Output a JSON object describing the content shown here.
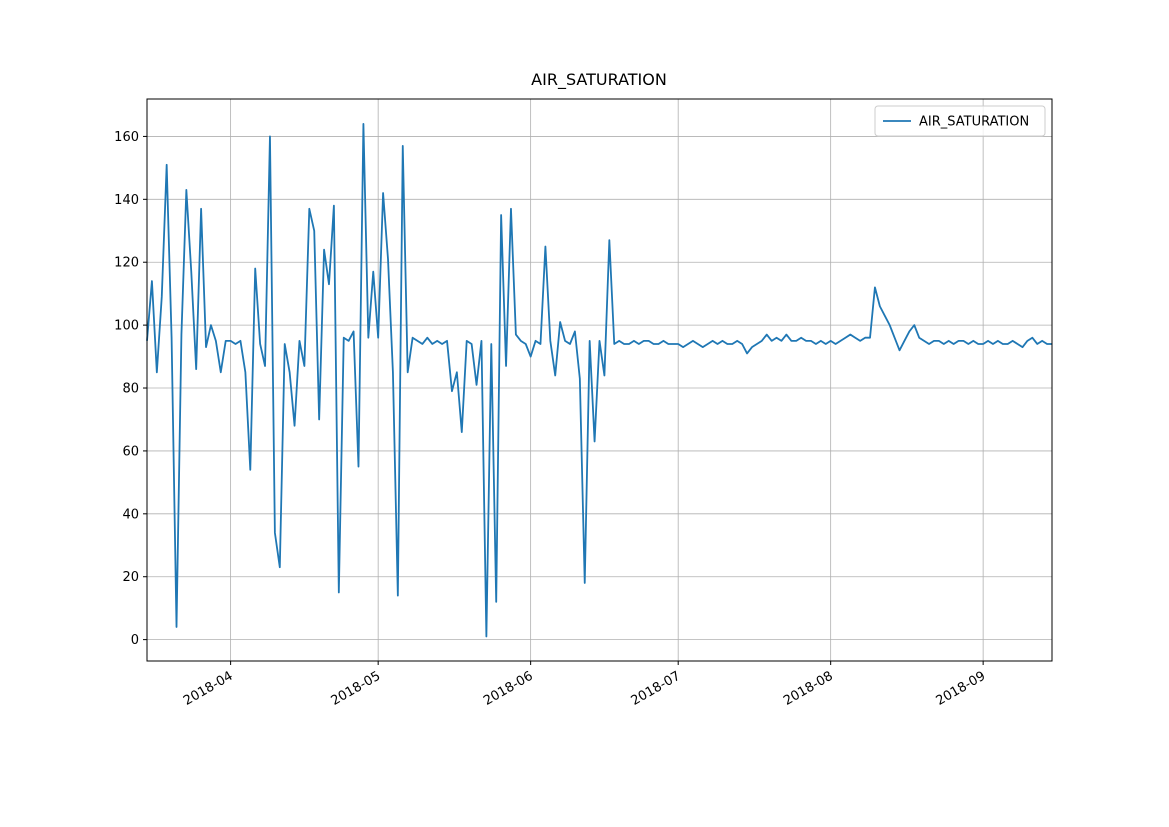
{
  "chart_data": {
    "type": "line",
    "title": "AIR_SATURATION",
    "x": [
      "2018-03-15",
      "2018-03-16",
      "2018-03-17",
      "2018-03-18",
      "2018-03-19",
      "2018-03-20",
      "2018-03-21",
      "2018-03-22",
      "2018-03-23",
      "2018-03-24",
      "2018-03-25",
      "2018-03-26",
      "2018-03-27",
      "2018-03-28",
      "2018-03-29",
      "2018-03-30",
      "2018-03-31",
      "2018-04-01",
      "2018-04-02",
      "2018-04-03",
      "2018-04-04",
      "2018-04-05",
      "2018-04-06",
      "2018-04-07",
      "2018-04-08",
      "2018-04-09",
      "2018-04-10",
      "2018-04-11",
      "2018-04-12",
      "2018-04-13",
      "2018-04-14",
      "2018-04-15",
      "2018-04-16",
      "2018-04-17",
      "2018-04-18",
      "2018-04-19",
      "2018-04-20",
      "2018-04-21",
      "2018-04-22",
      "2018-04-23",
      "2018-04-24",
      "2018-04-25",
      "2018-04-26",
      "2018-04-27",
      "2018-04-28",
      "2018-04-29",
      "2018-04-30",
      "2018-05-01",
      "2018-05-02",
      "2018-05-03",
      "2018-05-04",
      "2018-05-05",
      "2018-05-06",
      "2018-05-07",
      "2018-05-08",
      "2018-05-09",
      "2018-05-10",
      "2018-05-11",
      "2018-05-12",
      "2018-05-13",
      "2018-05-14",
      "2018-05-15",
      "2018-05-16",
      "2018-05-17",
      "2018-05-18",
      "2018-05-19",
      "2018-05-20",
      "2018-05-21",
      "2018-05-22",
      "2018-05-23",
      "2018-05-24",
      "2018-05-25",
      "2018-05-26",
      "2018-05-27",
      "2018-05-28",
      "2018-05-29",
      "2018-05-30",
      "2018-05-31",
      "2018-06-01",
      "2018-06-02",
      "2018-06-03",
      "2018-06-04",
      "2018-06-05",
      "2018-06-06",
      "2018-06-07",
      "2018-06-08",
      "2018-06-09",
      "2018-06-10",
      "2018-06-11",
      "2018-06-12",
      "2018-06-13",
      "2018-06-14",
      "2018-06-15",
      "2018-06-16",
      "2018-06-17",
      "2018-06-18",
      "2018-06-19",
      "2018-06-20",
      "2018-06-21",
      "2018-06-22",
      "2018-06-23",
      "2018-06-24",
      "2018-06-25",
      "2018-06-26",
      "2018-06-27",
      "2018-06-28",
      "2018-06-29",
      "2018-06-30",
      "2018-07-01",
      "2018-07-02",
      "2018-07-03",
      "2018-07-04",
      "2018-07-05",
      "2018-07-06",
      "2018-07-07",
      "2018-07-08",
      "2018-07-09",
      "2018-07-10",
      "2018-07-11",
      "2018-07-12",
      "2018-07-13",
      "2018-07-14",
      "2018-07-15",
      "2018-07-16",
      "2018-07-17",
      "2018-07-18",
      "2018-07-19",
      "2018-07-20",
      "2018-07-21",
      "2018-07-22",
      "2018-07-23",
      "2018-07-24",
      "2018-07-25",
      "2018-07-26",
      "2018-07-27",
      "2018-07-28",
      "2018-07-29",
      "2018-07-30",
      "2018-07-31",
      "2018-08-01",
      "2018-08-02",
      "2018-08-03",
      "2018-08-04",
      "2018-08-05",
      "2018-08-06",
      "2018-08-07",
      "2018-08-08",
      "2018-08-09",
      "2018-08-10",
      "2018-08-11",
      "2018-08-12",
      "2018-08-13",
      "2018-08-14",
      "2018-08-15",
      "2018-08-16",
      "2018-08-17",
      "2018-08-18",
      "2018-08-19",
      "2018-08-20",
      "2018-08-21",
      "2018-08-22",
      "2018-08-23",
      "2018-08-24",
      "2018-08-25",
      "2018-08-26",
      "2018-08-27",
      "2018-08-28",
      "2018-08-29",
      "2018-08-30",
      "2018-08-31",
      "2018-09-01",
      "2018-09-02",
      "2018-09-03",
      "2018-09-04",
      "2018-09-05",
      "2018-09-06",
      "2018-09-07",
      "2018-09-08",
      "2018-09-09",
      "2018-09-10",
      "2018-09-11",
      "2018-09-12",
      "2018-09-13",
      "2018-09-14",
      "2018-09-15"
    ],
    "series": [
      {
        "name": "AIR_SATURATION",
        "color": "#1f77b4",
        "values": [
          95,
          114,
          85,
          109,
          151,
          96,
          4,
          97,
          143,
          117,
          86,
          137,
          93,
          100,
          95,
          85,
          95,
          95,
          94,
          95,
          85,
          54,
          118,
          94,
          87,
          160,
          34,
          23,
          94,
          85,
          68,
          95,
          87,
          137,
          130,
          70,
          124,
          113,
          138,
          15,
          96,
          95,
          98,
          55,
          164,
          96,
          117,
          96,
          142,
          121,
          85,
          14,
          157,
          85,
          96,
          95,
          94,
          96,
          94,
          95,
          94,
          95,
          79,
          85,
          66,
          95,
          94,
          81,
          95,
          1,
          94,
          12,
          135,
          87,
          137,
          97,
          95,
          94,
          90,
          95,
          94,
          125,
          95,
          84,
          101,
          95,
          94,
          98,
          83,
          18,
          95,
          63,
          95,
          84,
          127,
          94,
          95,
          94,
          94,
          95,
          94,
          95,
          95,
          94,
          94,
          95,
          94,
          94,
          94,
          93,
          94,
          95,
          94,
          93,
          94,
          95,
          94,
          95,
          94,
          94,
          95,
          94,
          91,
          93,
          94,
          95,
          97,
          95,
          96,
          95,
          97,
          95,
          95,
          96,
          95,
          95,
          94,
          95,
          94,
          95,
          94,
          95,
          96,
          97,
          96,
          95,
          96,
          96,
          112,
          106,
          103,
          100,
          96,
          92,
          95,
          98,
          100,
          96,
          95,
          94,
          95,
          95,
          94,
          95,
          94,
          95,
          95,
          94,
          95,
          94,
          94,
          95,
          94,
          95,
          94,
          94,
          95,
          94,
          93,
          95,
          96,
          94,
          95,
          94,
          94
        ]
      }
    ],
    "xlim": [
      "2018-03-15",
      "2018-09-15"
    ],
    "xticks": [
      "2018-04",
      "2018-05",
      "2018-06",
      "2018-07",
      "2018-08",
      "2018-09"
    ],
    "ylim": [
      -6.8,
      171.9
    ],
    "yticks": [
      0,
      20,
      40,
      60,
      80,
      100,
      120,
      140,
      160
    ],
    "grid": true,
    "legend": "upper right"
  }
}
